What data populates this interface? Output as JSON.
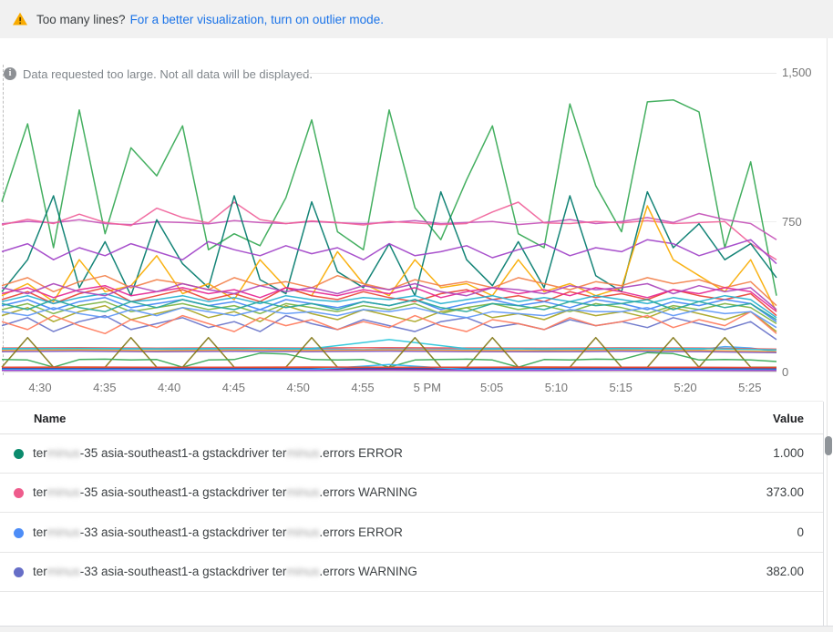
{
  "banner": {
    "warning_icon": "warning-triangle",
    "text": "Too many lines?",
    "link": "For a better visualization, turn on outlier mode."
  },
  "notice": {
    "icon": "info-circle",
    "text": "Data requested too large. Not all data will be displayed."
  },
  "chart_data": {
    "type": "line",
    "title": "",
    "xlabel": "",
    "ylabel": "",
    "ylim": [
      0,
      1500
    ],
    "y_ticks": [
      "1,500",
      "750",
      "0"
    ],
    "x_ticks": [
      "4:30",
      "4:35",
      "4:40",
      "4:45",
      "4:50",
      "4:55",
      "5 PM",
      "5:05",
      "5:10",
      "5:15",
      "5:20",
      "5:25"
    ],
    "grid": "horizontal",
    "legend_position": "table-below",
    "series": [
      {
        "name": "line-green-spiky",
        "color": "#34a853",
        "values": [
          850,
          1240,
          620,
          1310,
          690,
          1120,
          980,
          1230,
          610,
          690,
          630,
          870,
          1260,
          700,
          610,
          1310,
          820,
          660,
          960,
          1230,
          690,
          620,
          1340,
          930,
          700,
          1350,
          1360,
          1300,
          620,
          1050,
          380
        ]
      },
      {
        "name": "line-magenta-750",
        "color": "#c552b8",
        "values": [
          740,
          752,
          744,
          760,
          741,
          736,
          750,
          746,
          740,
          756,
          746,
          741,
          751,
          745,
          741,
          746,
          756,
          741,
          746,
          751,
          736,
          746,
          761,
          741,
          751,
          771,
          746,
          791,
          761,
          741,
          660
        ]
      },
      {
        "name": "line-pink-750",
        "color": "#f0629a",
        "values": [
          734,
          762,
          741,
          788,
          746,
          731,
          818,
          771,
          744,
          848,
          761,
          741,
          754,
          746,
          734,
          751,
          744,
          736,
          741,
          799,
          848,
          744,
          741,
          751,
          744,
          756,
          741,
          746,
          751,
          641,
          560
        ]
      },
      {
        "name": "line-dark-teal",
        "color": "#00796b",
        "values": [
          400,
          560,
          880,
          420,
          650,
          380,
          760,
          540,
          420,
          880,
          460,
          390,
          850,
          500,
          420,
          640,
          380,
          900,
          560,
          430,
          650,
          420,
          880,
          480,
          400,
          900,
          620,
          740,
          560,
          640,
          470
        ]
      },
      {
        "name": "line-purple",
        "color": "#a142c8",
        "values": [
          600,
          640,
          560,
          620,
          580,
          640,
          600,
          560,
          650,
          610,
          580,
          630,
          590,
          620,
          560,
          640,
          580,
          600,
          630,
          570,
          610,
          640,
          580,
          620,
          600,
          660,
          640,
          580,
          620,
          660,
          540
        ]
      },
      {
        "name": "line-yellow",
        "color": "#f9ab00",
        "values": [
          380,
          440,
          350,
          560,
          400,
          430,
          580,
          390,
          440,
          360,
          560,
          420,
          380,
          600,
          440,
          380,
          560,
          420,
          440,
          380,
          560,
          400,
          440,
          380,
          420,
          830,
          560,
          480,
          400,
          560,
          300
        ]
      },
      {
        "name": "line-orange",
        "color": "#f2804a",
        "values": [
          430,
          470,
          400,
          450,
          480,
          420,
          460,
          440,
          410,
          470,
          430,
          450,
          420,
          480,
          440,
          410,
          460,
          430,
          450,
          420,
          470,
          440,
          410,
          450,
          430,
          470,
          440,
          460,
          420,
          450,
          330
        ]
      },
      {
        "name": "line-red",
        "color": "#ea4335",
        "values": [
          360,
          400,
          340,
          390,
          420,
          350,
          380,
          410,
          360,
          390,
          350,
          420,
          380,
          360,
          400,
          370,
          350,
          390,
          410,
          360,
          380,
          350,
          400,
          370,
          390,
          360,
          410,
          380,
          360,
          390,
          280
        ]
      },
      {
        "name": "line-blue",
        "color": "#4285f4",
        "values": [
          330,
          360,
          310,
          350,
          370,
          320,
          340,
          360,
          330,
          350,
          310,
          360,
          340,
          320,
          350,
          330,
          360,
          310,
          340,
          360,
          330,
          350,
          320,
          360,
          340,
          310,
          350,
          330,
          360,
          340,
          250
        ]
      },
      {
        "name": "line-cyan",
        "color": "#24b0cf",
        "values": [
          350,
          380,
          340,
          370,
          390,
          350,
          360,
          380,
          350,
          370,
          340,
          380,
          360,
          350,
          370,
          360,
          380,
          340,
          360,
          380,
          350,
          370,
          350,
          380,
          360,
          340,
          370,
          350,
          380,
          360,
          270
        ]
      },
      {
        "name": "line-olive",
        "color": "#a8a421",
        "values": [
          280,
          320,
          250,
          300,
          330,
          260,
          290,
          320,
          270,
          300,
          250,
          330,
          290,
          260,
          310,
          280,
          250,
          300,
          320,
          270,
          290,
          260,
          310,
          280,
          300,
          270,
          320,
          290,
          260,
          300,
          200
        ]
      },
      {
        "name": "line-indigo",
        "color": "#6772c9",
        "values": [
          230,
          270,
          200,
          250,
          280,
          210,
          240,
          270,
          220,
          250,
          200,
          280,
          240,
          210,
          260,
          230,
          200,
          250,
          270,
          220,
          240,
          210,
          260,
          230,
          250,
          220,
          270,
          240,
          210,
          250,
          160
        ]
      },
      {
        "name": "line-salmon",
        "color": "#ff7b5c",
        "values": [
          250,
          210,
          280,
          230,
          190,
          260,
          220,
          280,
          240,
          200,
          270,
          230,
          260,
          210,
          250,
          220,
          280,
          230,
          200,
          260,
          240,
          210,
          270,
          230,
          250,
          280,
          220,
          260,
          230,
          300,
          190
        ]
      },
      {
        "name": "line-pink-2",
        "color": "#e52592",
        "values": [
          390,
          420,
          370,
          410,
          430,
          380,
          400,
          420,
          390,
          410,
          370,
          420,
          400,
          380,
          410,
          390,
          420,
          370,
          400,
          420,
          390,
          410,
          380,
          420,
          400,
          370,
          410,
          390,
          420,
          400,
          300
        ]
      },
      {
        "name": "line-green-2",
        "color": "#7cb342",
        "values": [
          310,
          340,
          290,
          330,
          350,
          300,
          320,
          340,
          310,
          330,
          290,
          340,
          320,
          300,
          330,
          310,
          340,
          290,
          320,
          340,
          310,
          330,
          300,
          340,
          320,
          290,
          330,
          310,
          340,
          320,
          240
        ]
      },
      {
        "name": "line-teal-2",
        "color": "#26a69a",
        "values": [
          340,
          310,
          360,
          320,
          300,
          350,
          320,
          360,
          330,
          310,
          350,
          320,
          340,
          310,
          350,
          330,
          360,
          320,
          300,
          340,
          330,
          310,
          350,
          330,
          340,
          360,
          310,
          350,
          320,
          340,
          260
        ]
      },
      {
        "name": "line-purple-2",
        "color": "#ab47bc",
        "values": [
          420,
          390,
          440,
          400,
          380,
          430,
          400,
          440,
          410,
          390,
          430,
          400,
          420,
          390,
          430,
          410,
          440,
          400,
          380,
          420,
          410,
          390,
          430,
          410,
          420,
          440,
          390,
          430,
          400,
          420,
          310
        ]
      },
      {
        "name": "line-blue-2",
        "color": "#5e97f6",
        "values": [
          300,
          280,
          320,
          290,
          270,
          310,
          280,
          320,
          300,
          280,
          310,
          290,
          300,
          280,
          310,
          300,
          320,
          290,
          270,
          300,
          290,
          280,
          310,
          300,
          300,
          320,
          280,
          310,
          290,
          300,
          220
        ]
      },
      {
        "name": "flat-blue",
        "color": "#42a5f5",
        "values": [
          112,
          114,
          110,
          113,
          111,
          114,
          112,
          110,
          113,
          112,
          114,
          111,
          113,
          112,
          110,
          114,
          112,
          113,
          111,
          112,
          114,
          110,
          113,
          112,
          111,
          114,
          112,
          110,
          125,
          118,
          100
        ]
      },
      {
        "name": "flat-red",
        "color": "#ef5350",
        "values": [
          118,
          120,
          117,
          119,
          118,
          120,
          118,
          117,
          119,
          118,
          112
        ]
      },
      {
        "name": "flat-orange",
        "color": "#ffa726",
        "values": [
          106,
          108,
          105,
          107,
          106,
          108,
          106,
          105,
          107,
          106,
          100
        ]
      },
      {
        "name": "flat-cyan",
        "color": "#26c6da",
        "values": [
          115,
          116,
          114,
          116,
          115,
          160,
          115,
          114,
          116,
          115,
          108
        ]
      },
      {
        "name": "flat-violet",
        "color": "#7e57c2",
        "values": [
          100,
          102,
          99,
          101,
          100,
          102,
          100,
          99,
          101,
          100,
          95
        ]
      },
      {
        "name": "olive-triangles",
        "color": "#827717",
        "values": [
          22,
          170,
          22,
          22,
          22,
          170,
          22,
          22,
          170,
          22,
          22,
          22,
          170,
          22,
          22,
          22,
          170,
          22,
          22,
          170,
          22,
          22,
          22,
          170,
          22,
          22,
          170,
          22,
          170,
          22,
          22
        ]
      },
      {
        "name": "green-low",
        "color": "#34a853",
        "values": [
          60,
          58,
          22,
          60,
          62,
          58,
          60,
          22,
          58,
          60,
          92,
          88,
          60,
          58,
          60,
          22,
          58,
          60,
          62,
          58,
          22,
          60,
          58,
          62,
          60,
          95,
          90,
          58,
          60,
          58,
          50
        ]
      },
      {
        "name": "bottom-orange",
        "color": "#f57c00",
        "values": [
          18,
          19,
          18,
          18,
          19,
          18,
          18,
          19,
          18,
          18,
          17
        ]
      },
      {
        "name": "bottom-teal",
        "color": "#00897b",
        "values": [
          12,
          12,
          13,
          12,
          12,
          13,
          12,
          12,
          13,
          12,
          11
        ]
      },
      {
        "name": "bottom-pink",
        "color": "#d81b60",
        "values": [
          8,
          8,
          9,
          8,
          8,
          9,
          8,
          8,
          9,
          8,
          7
        ]
      },
      {
        "name": "bottom-indigo",
        "color": "#3949ab",
        "values": [
          15,
          15,
          16,
          15,
          15,
          16,
          15,
          15,
          16,
          15,
          14
        ]
      },
      {
        "name": "bottom-lightblue",
        "color": "#29b6f6",
        "values": [
          10,
          10,
          10,
          10,
          10,
          35,
          10,
          10,
          10,
          10,
          8
        ]
      },
      {
        "name": "bottom-lime",
        "color": "#c0ca33",
        "values": [
          5,
          5,
          6,
          5,
          5,
          6,
          5,
          5,
          6,
          5,
          4
        ]
      },
      {
        "name": "bottom-red",
        "color": "#e94335",
        "values": [
          22,
          23,
          22,
          22,
          23,
          22,
          22,
          23,
          22,
          22,
          20
        ]
      },
      {
        "name": "bottom-purple",
        "color": "#9334e6",
        "values": [
          6,
          6,
          7,
          6,
          6,
          7,
          6,
          6,
          7,
          6,
          5
        ]
      }
    ]
  },
  "legend": {
    "name_header": "Name",
    "value_header": "Value",
    "rows": [
      {
        "dot_color": "#0b8b6d",
        "pre": "ter",
        "redacted1": "minus",
        "mid": "-35 asia-southeast1-a gstackdriver ter",
        "redacted2": "minus",
        "post": ".errors ERROR",
        "value": "1.000"
      },
      {
        "dot_color": "#ee5c8c",
        "pre": "ter",
        "redacted1": "minus",
        "mid": "-35 asia-southeast1-a gstackdriver ter",
        "redacted2": "minus",
        "post": ".errors WARNING",
        "value": "373.00"
      },
      {
        "dot_color": "#4d8df7",
        "pre": "ter",
        "redacted1": "minus",
        "mid": "-33 asia-southeast1-a gstackdriver ter",
        "redacted2": "minus",
        "post": ".errors ERROR",
        "value": "0"
      },
      {
        "dot_color": "#666ec7",
        "pre": "ter",
        "redacted1": "minus",
        "mid": "-33 asia-southeast1-a gstackdriver ter",
        "redacted2": "minus",
        "post": ".errors WARNING",
        "value": "382.00"
      }
    ]
  },
  "colors": {
    "banner_bg": "#f1f1f1",
    "link_blue": "#1a73e8",
    "warning_amber": "#f9ab00",
    "muted_text": "#80868b",
    "axis_text": "#757575"
  }
}
